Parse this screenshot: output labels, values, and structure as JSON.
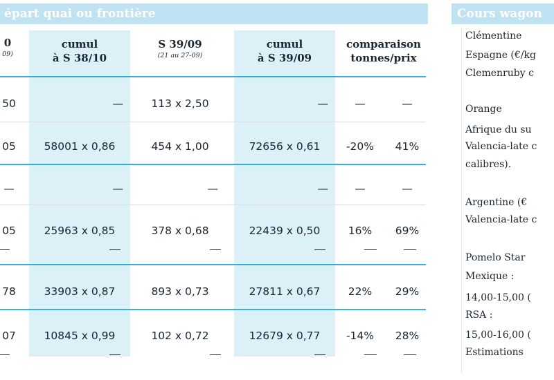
{
  "main_header": "épart quai ou frontière",
  "side_header": "Cours wagon",
  "table": {
    "columns": [
      {
        "line1": "0",
        "line2": "09)"
      },
      {
        "line1": "cumul",
        "line2": "à S 38/10"
      },
      {
        "line1": "S 39/09",
        "line2": "(21 au 27-09)"
      },
      {
        "line1": "cumul",
        "line2": "à S 39/09"
      },
      {
        "line1": "comparaison",
        "line2": "tonnes/prix"
      }
    ],
    "rows": [
      {
        "c0": "50",
        "c1": "—",
        "c2": "113 x 2,50",
        "c3": "—",
        "c4": "—",
        "c5": "—"
      },
      {
        "c0": "05",
        "c1": "58001 x 0,86",
        "c2": "454 x 1,00",
        "c3": "72656 x 0,61",
        "c4": "-20%",
        "c5": "41%"
      },
      {
        "c0": "—",
        "c1": "—",
        "c2": "—",
        "c3": "—",
        "c4": "—",
        "c5": "—"
      },
      {
        "c0": "05",
        "c1": "25963 x 0,85",
        "c2": "378 x 0,68",
        "c3": "22439 x 0,50",
        "c4": "16%",
        "c5": "69%"
      },
      {
        "c0": "78",
        "c1": "33903 x 0,87",
        "c2": "893 x 0,73",
        "c3": "27811 x 0,67",
        "c4": "22%",
        "c5": "29%"
      },
      {
        "c0": "07",
        "c1": "10845 x 0,99",
        "c2": "102 x 0,72",
        "c3": "12679 x 0,77",
        "c4": "-14%",
        "c5": "28%"
      }
    ]
  },
  "side": {
    "clementine_title": "Clémentine",
    "clementine_origin": "Espagne (€/kg",
    "clementine_variety": "Clemenruby c",
    "orange_title": "Orange",
    "orange_origin1": "Afrique du su",
    "orange_variety1": "Valencia-late c",
    "orange_variety1b": "calibres).",
    "orange_origin2": "Argentine (€",
    "orange_variety2": "Valencia-late c",
    "pomelo_title": "Pomelo Star",
    "mexique_label": "Mexique :",
    "mexique_value": "14,00-15,00 (",
    "rsa_label": "RSA :",
    "rsa_value": "15,00-16,00 (",
    "estimations": "Estimations"
  }
}
